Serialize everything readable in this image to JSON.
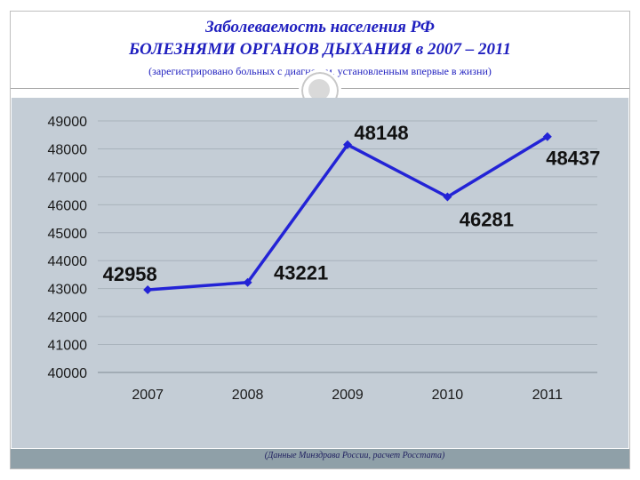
{
  "title": {
    "line1": "Заболеваемость населения РФ",
    "line2": "БОЛЕЗНЯМИ ОРГАНОВ ДЫХАНИЯ в 2007 – 2011",
    "subtitle": "(зарегистрировано больных с диагнозом, установленным впервые в жизни)"
  },
  "source_note": "(Данные Минздрава России, расчет Росстата)",
  "colors": {
    "title": "#1f1fbf",
    "line": "#2323d6",
    "panel": "#c4cdd6",
    "footer": "#8fa0a8"
  },
  "chart_data": {
    "type": "line",
    "x": [
      "2007",
      "2008",
      "2009",
      "2010",
      "2011"
    ],
    "series": [
      {
        "values": [
          42958,
          43221,
          48148,
          46281,
          48437
        ]
      }
    ],
    "data_labels": [
      "42958",
      "43221",
      "48148",
      "46281",
      "48437"
    ],
    "ylim": [
      40000,
      49000
    ],
    "yticks": [
      "40000",
      "41000",
      "42000",
      "43000",
      "44000",
      "45000",
      "46000",
      "47000",
      "48000",
      "49000"
    ],
    "grid": true,
    "legend": "none"
  }
}
